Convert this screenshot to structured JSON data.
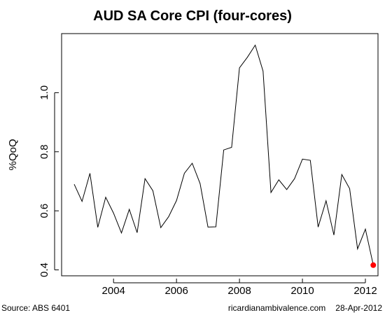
{
  "chart_data": {
    "type": "line",
    "title": "AUD SA Core CPI (four-cores)",
    "xlabel": "",
    "ylabel": "%QoQ",
    "xlim": [
      2002.35,
      2012.4
    ],
    "ylim": [
      0.38,
      1.2
    ],
    "x_ticks": [
      2004,
      2006,
      2008,
      2010,
      2012
    ],
    "y_ticks": [
      0.4,
      0.6,
      0.8,
      1.0
    ],
    "y_tick_labels": [
      "0.4",
      "0.6",
      "0.8",
      "1.0"
    ],
    "grid": false,
    "legend": "none",
    "line_color": "#000000",
    "highlight_color": "#ff0000",
    "series": [
      {
        "x": [
          2002.75,
          2003.0,
          2003.25,
          2003.5,
          2003.75,
          2004.0,
          2004.25,
          2004.5,
          2004.75,
          2005.0,
          2005.25,
          2005.5,
          2005.75,
          2006.0,
          2006.25,
          2006.5,
          2006.75,
          2007.0,
          2007.25,
          2007.5,
          2007.75,
          2008.0,
          2008.25,
          2008.5,
          2008.75,
          2009.0,
          2009.25,
          2009.5,
          2009.75,
          2010.0,
          2010.25,
          2010.5,
          2010.75,
          2011.0,
          2011.25,
          2011.5,
          2011.75,
          2012.0,
          2012.25
        ],
        "values": [
          0.69,
          0.632,
          0.727,
          0.544,
          0.646,
          0.592,
          0.525,
          0.605,
          0.526,
          0.709,
          0.668,
          0.543,
          0.58,
          0.635,
          0.727,
          0.761,
          0.692,
          0.545,
          0.546,
          0.806,
          0.815,
          1.084,
          1.12,
          1.161,
          1.073,
          0.662,
          0.705,
          0.672,
          0.709,
          0.775,
          0.771,
          0.545,
          0.634,
          0.518,
          0.723,
          0.675,
          0.471,
          0.538,
          0.416
        ]
      }
    ],
    "highlight_point": {
      "x": 2012.25,
      "y": 0.416
    }
  },
  "footer": {
    "source": "Source: ABS 6401",
    "site": "ricardianambivalence.com",
    "date": "28-Apr-2012"
  }
}
